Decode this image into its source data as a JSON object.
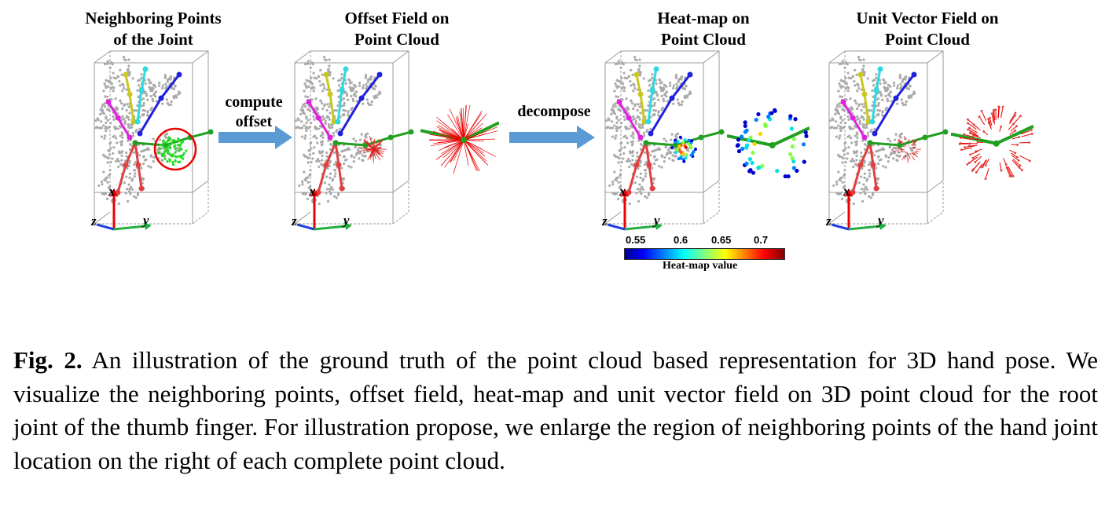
{
  "panels": [
    {
      "title": "Neighboring Points\nof the Joint"
    },
    {
      "title": "Offset Field on\nPoint Cloud"
    },
    {
      "title": "Heat-map on\nPoint Cloud"
    },
    {
      "title": "Unit Vector Field on\nPoint Cloud"
    }
  ],
  "steps": {
    "compute": "compute\noffset",
    "decompose": "decompose"
  },
  "axes": {
    "x": "x",
    "y": "y",
    "z": "z"
  },
  "colorbar": {
    "ticks": [
      "0.55",
      "0.6",
      "0.65",
      "0.7"
    ],
    "label": "Heat-map value"
  },
  "caption": {
    "label": "Fig. 2.",
    "text": "An illustration of the ground truth of the point cloud based representation for 3D hand pose. We visualize the neighboring points, offset field, heat-map and unit vector field on 3D point cloud for the root joint of the thumb finger. For illustration propose, we enlarge the region of neighboring points of the hand joint location on the right of each complete point cloud."
  }
}
